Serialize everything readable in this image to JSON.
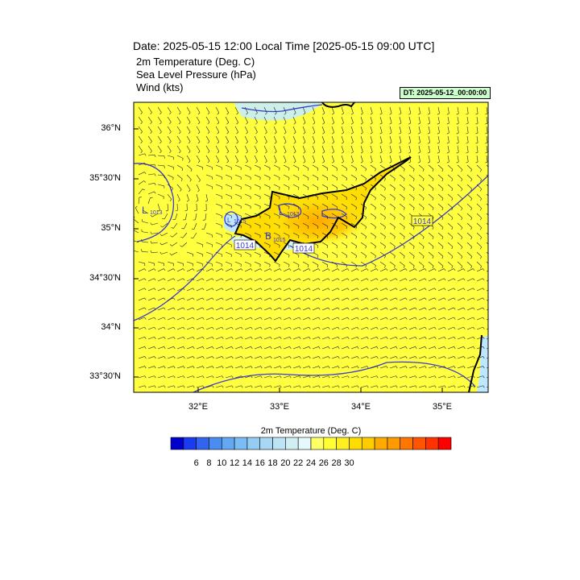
{
  "header": {
    "title": "Date: 2025-05-15  12:00 Local Time [2025-05-15  09:00 UTC]",
    "fields": [
      "2m Temperature (Deg. C)",
      "Sea Level Pressure   (hPa)",
      "Wind   (kts)"
    ],
    "dt_badge": "DT: 2025-05-12_00:00:00",
    "dt_badge_color": "#ccffcc"
  },
  "map": {
    "region": "Cyprus",
    "lat_range": [
      33.3,
      36.3
    ],
    "lon_range": [
      31.2,
      35.5
    ],
    "lat_labels": [
      "36°N",
      "35°30'N",
      "35°N",
      "34°30'N",
      "34°N",
      "33°30'N"
    ],
    "lon_labels": [
      "32°E",
      "33°E",
      "34°E",
      "35°E"
    ],
    "background_color": "#ffff40",
    "pressure_contour_color": "#3a3ad0",
    "contour_labels": [
      "1014",
      "1014",
      "1014"
    ],
    "low_markers": [
      {
        "symbol": "L",
        "value": "1013"
      },
      {
        "symbol": "L",
        "value": "1013"
      },
      {
        "symbol": "L",
        "value": "1015"
      },
      {
        "symbol": "B",
        "value": "1015"
      }
    ],
    "wind_barb_icon": "wind-barb-icon"
  },
  "colorbar": {
    "title": "2m Temperature (Deg. C)",
    "colors": [
      "#0000cc",
      "#1a3cf0",
      "#3264f0",
      "#4a8cf0",
      "#64a8f4",
      "#7cbcf4",
      "#94ccf4",
      "#a8d8f4",
      "#bce4f4",
      "#d0eef4",
      "#e4fafa",
      "#ffff66",
      "#ffff33",
      "#ffee22",
      "#ffdd00",
      "#ffcc00",
      "#ffaa00",
      "#ff9900",
      "#ff7700",
      "#ff5500",
      "#ff3300",
      "#ff0000"
    ],
    "labels": [
      "6",
      "8",
      "10",
      "12",
      "14",
      "16",
      "18",
      "20",
      "22",
      "24",
      "26",
      "28",
      "30"
    ]
  }
}
